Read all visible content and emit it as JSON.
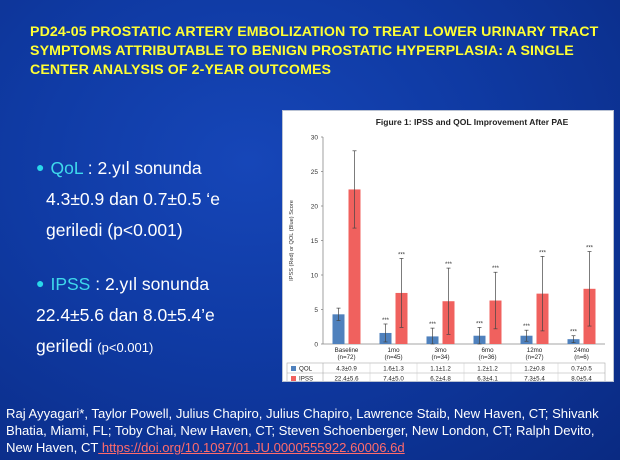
{
  "slide": {
    "title": "PD24-05    PROSTATIC ARTERY EMBOLIZATION TO TREAT LOWER URINARY TRACT SYMPTOMS ATTRIBUTABLE TO BENIGN PROSTATIC HYPERPLASIA: A SINGLE CENTER ANALYSIS OF 2-YEAR OUTCOMES"
  },
  "bullets": [
    {
      "keyword": "QoL",
      "line1_rest": " : 2.yıl sonunda",
      "line2": "4.3±0.9 dan 0.7±0.5 ‘e",
      "line3": "geriledi (p<0.001)"
    },
    {
      "keyword": "IPSS",
      "line1_rest": " : 2.yıl sonunda",
      "line2": "22.4±5.6 dan 8.0±5.4’e",
      "line3_main": "geriledi ",
      "line3_small": "(p<0.001)"
    }
  ],
  "citation": {
    "text": "Raj Ayyagari*, Taylor Powell, Julius Chapiro, Julius Chapiro, Lawrence Staib, New Haven, CT; Shivank Bhatia, Miami, FL; Toby Chai, New Haven, CT; Steven Schoenberger, New London, CT; Ralph Devito, New Haven, CT",
    "link": " https://doi.org/10.1097/01.JU.0000555922.60006.6d"
  },
  "colors": {
    "qol": "#4f81bd",
    "ipss": "#f0615e",
    "title": "#ffff33",
    "accent": "#3ed9ec"
  },
  "chart_data": {
    "type": "bar",
    "title": "Figure 1: IPSS and QOL Improvement After PAE",
    "ylabel": "IPSS (Red) or QOL (Blue) Score",
    "ylim": [
      0,
      30
    ],
    "yticks": [
      0,
      5,
      10,
      15,
      20,
      25,
      30
    ],
    "categories": [
      {
        "name": "Baseline",
        "n": "(n=72)"
      },
      {
        "name": "1mo",
        "n": "(n=45)"
      },
      {
        "name": "3mo",
        "n": "(n=34)"
      },
      {
        "name": "6mo",
        "n": "(n=36)"
      },
      {
        "name": "12mo",
        "n": "(n=27)"
      },
      {
        "name": "24mo",
        "n": "(n=6)"
      }
    ],
    "series": [
      {
        "name": "QOL",
        "values": [
          4.3,
          1.6,
          1.1,
          1.2,
          1.2,
          0.7
        ],
        "errors": [
          0.9,
          1.3,
          1.2,
          1.2,
          0.8,
          0.5
        ],
        "labels": [
          "4.3±0.9",
          "1.6±1.3",
          "1.1±1.2",
          "1.2±1.2",
          "1.2±0.8",
          "0.7±0.5"
        ],
        "sig": [
          "",
          "***",
          "***",
          "***",
          "***",
          "***"
        ]
      },
      {
        "name": "IPSS",
        "values": [
          22.4,
          7.4,
          6.2,
          6.3,
          7.3,
          8.0
        ],
        "errors": [
          5.6,
          5.0,
          4.8,
          4.1,
          5.4,
          5.4
        ],
        "labels": [
          "22.4±5.6",
          "7.4±5.0",
          "6.2±4.8",
          "6.3±4.1",
          "7.3±5.4",
          "8.0±5.4"
        ],
        "sig": [
          "",
          "***",
          "***",
          "***",
          "***",
          "***"
        ]
      }
    ]
  }
}
